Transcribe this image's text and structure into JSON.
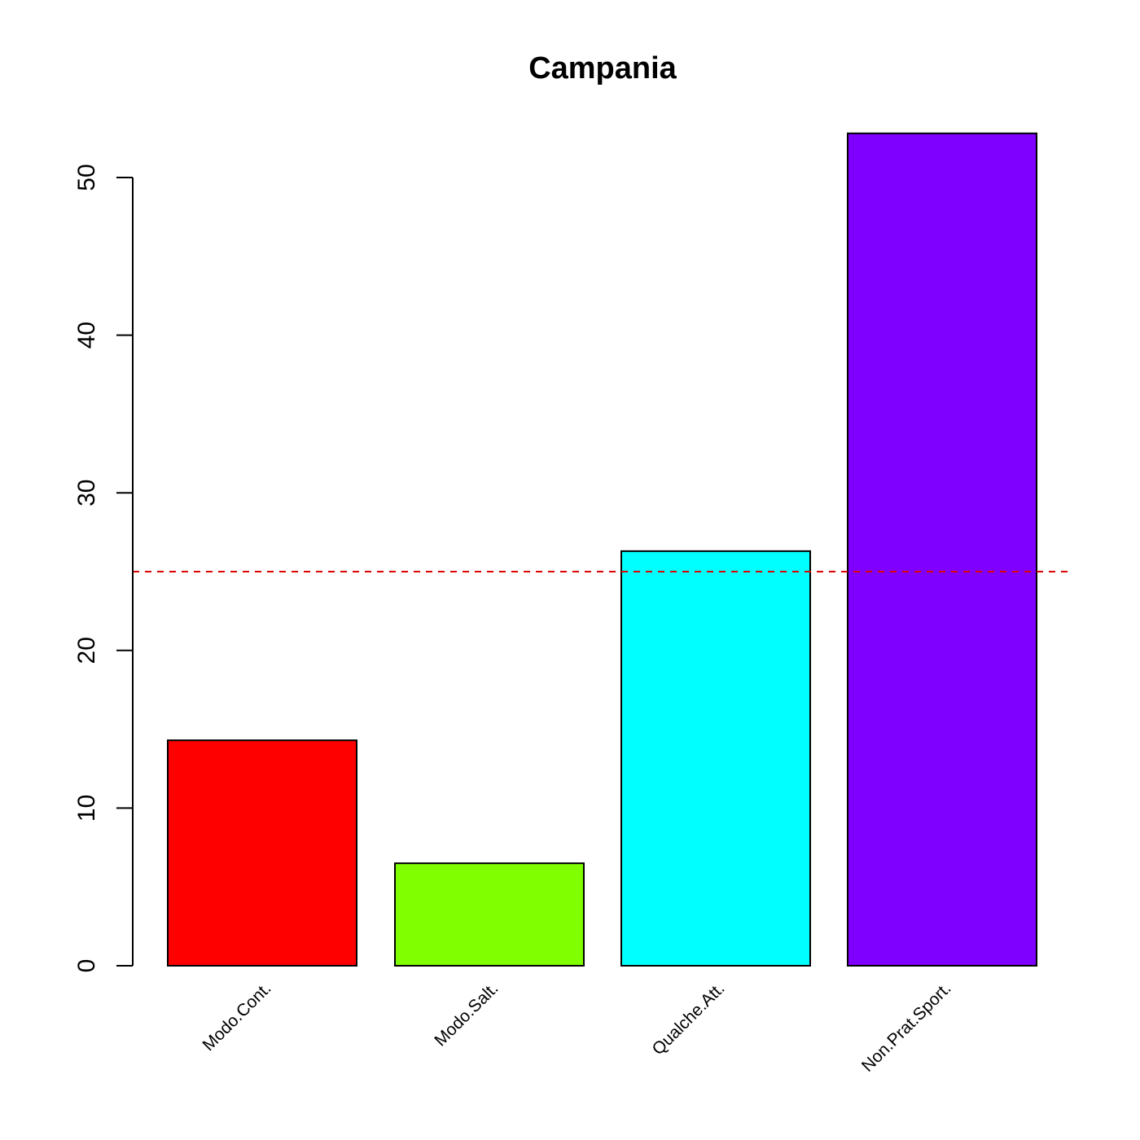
{
  "chart_data": {
    "type": "bar",
    "title": "Campania",
    "xlabel": "",
    "ylabel": "",
    "categories": [
      "Modo.Cont.",
      "Modo.Salt.",
      "Qualche.Att.",
      "Non.Prat.Sport."
    ],
    "values": [
      14.3,
      6.5,
      26.3,
      52.8
    ],
    "colors": [
      "#ff0000",
      "#80ff00",
      "#00ffff",
      "#8000ff"
    ],
    "ylim": [
      0,
      50
    ],
    "yticks": [
      0,
      10,
      20,
      30,
      40,
      50
    ],
    "reference_line": {
      "value": 25,
      "color": "#dd0000",
      "style": "dashed"
    },
    "grid": false,
    "legend": "none"
  }
}
